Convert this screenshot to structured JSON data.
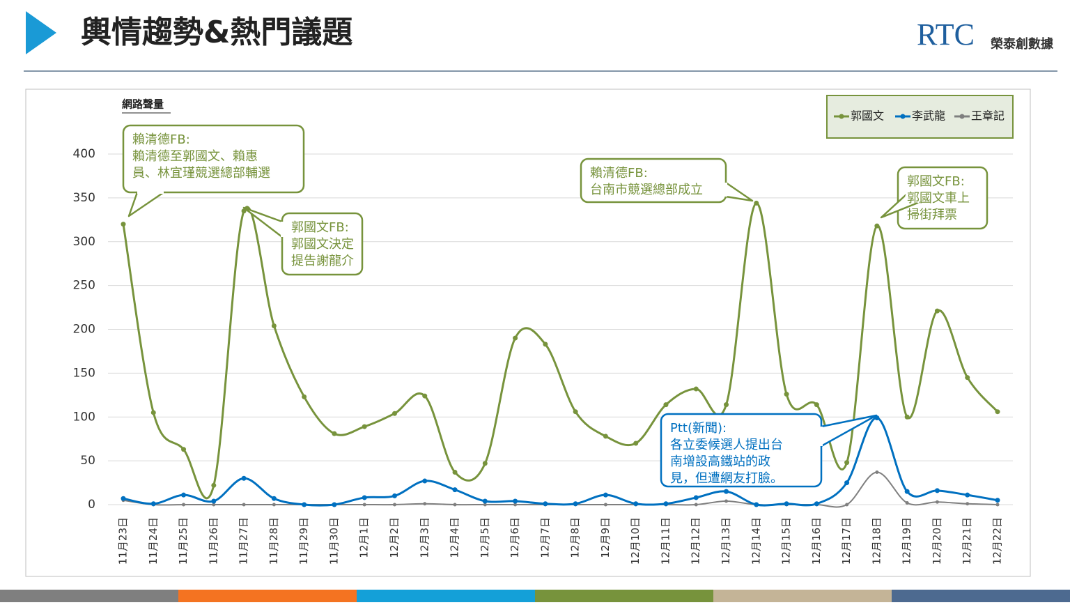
{
  "header": {
    "title": "輿情趨勢&熱門議題",
    "logo_mark": "RTC",
    "logo_text": "榮泰創數據"
  },
  "chart_data": {
    "type": "line",
    "y_label": "網路聲量",
    "categories": [
      "11月23日",
      "11月24日",
      "11月25日",
      "11月26日",
      "11月27日",
      "11月28日",
      "11月29日",
      "11月30日",
      "12月1日",
      "12月2日",
      "12月3日",
      "12月4日",
      "12月5日",
      "12月6日",
      "12月7日",
      "12月8日",
      "12月9日",
      "12月10日",
      "12月11日",
      "12月12日",
      "12月13日",
      "12月14日",
      "12月15日",
      "12月16日",
      "12月17日",
      "12月18日",
      "12月19日",
      "12月20日",
      "12月21日",
      "12月22日"
    ],
    "series": [
      {
        "name": "郭國文",
        "color": "#77933c",
        "values": [
          320,
          105,
          63,
          22,
          335,
          204,
          123,
          81,
          89,
          104,
          124,
          37,
          47,
          190,
          183,
          106,
          78,
          70,
          114,
          132,
          114,
          344,
          126,
          114,
          48,
          318,
          100,
          221,
          145,
          106
        ]
      },
      {
        "name": "李武龍",
        "color": "#0070c0",
        "values": [
          7,
          1,
          11,
          4,
          30,
          7,
          0,
          0,
          8,
          10,
          27,
          17,
          4,
          4,
          1,
          1,
          11,
          1,
          1,
          8,
          15,
          0,
          1,
          1,
          25,
          99,
          15,
          16,
          11,
          5
        ]
      },
      {
        "name": "王章記",
        "color": "#7f7f7f",
        "values": [
          5,
          0,
          0,
          0,
          0,
          0,
          0,
          0,
          0,
          0,
          1,
          0,
          0,
          0,
          0,
          0,
          0,
          0,
          0,
          0,
          4,
          0,
          0,
          0,
          0,
          37,
          2,
          3,
          1,
          0
        ]
      }
    ],
    "ylim": [
      0,
      400
    ],
    "yticks": [
      0,
      50,
      100,
      150,
      200,
      250,
      300,
      350,
      400
    ],
    "grid": true,
    "legend": "top-right",
    "annotations": [
      {
        "lines": [
          "賴清德FB:",
          "賴清德至郭國文、賴惠",
          "員、林宜瑾競選總部輔選"
        ],
        "color": "#77933c"
      },
      {
        "lines": [
          "郭國文FB:",
          "郭國文決定",
          "提告謝龍介"
        ],
        "color": "#77933c"
      },
      {
        "lines": [
          "賴清德FB:",
          "台南市競選總部成立"
        ],
        "color": "#77933c"
      },
      {
        "lines": [
          "郭國文FB:",
          "郭國文車上",
          "掃街拜票"
        ],
        "color": "#77933c"
      },
      {
        "lines": [
          "Ptt(新聞):",
          "各立委候選人提出台",
          "南增設高鐵站的政",
          "見，但遭網友打臉。"
        ],
        "color": "#0070c0"
      }
    ]
  }
}
